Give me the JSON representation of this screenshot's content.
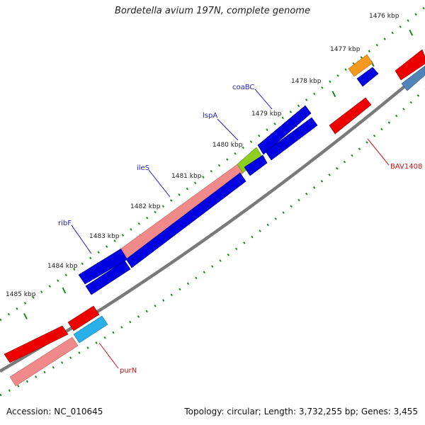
{
  "title": "Bordetella avium 197N, complete genome",
  "footer": {
    "accession": "Accession: NC_010645",
    "topology": "Topology: circular; Length: 3,732,255 bp; Genes: 3,455"
  },
  "scale_labels": [
    "1476 kbp",
    "1477 kbp",
    "1478 kbp",
    "1479 kbp",
    "1480 kbp",
    "1481 kbp",
    "1482 kbp",
    "1483 kbp",
    "1484 kbp",
    "1485 kbp"
  ],
  "gene_labels": {
    "coaBC": "coaBC",
    "lspA": "lspA",
    "ileS": "ileS",
    "ribF": "ribF",
    "BAV1408": "BAV1408",
    "purN": "purN"
  },
  "colors": {
    "blue": "#0000e0",
    "red": "#ee0000",
    "pink": "#f08a8a",
    "orange": "#f39a1e",
    "green": "#8ccf1f",
    "cyan": "#2ab0e8",
    "steel": "#4f84b8",
    "backbone": "#7a7a7a",
    "tick": "#1b8a1b",
    "blue_label": "#1f1fbf",
    "red_label": "#d01010"
  }
}
